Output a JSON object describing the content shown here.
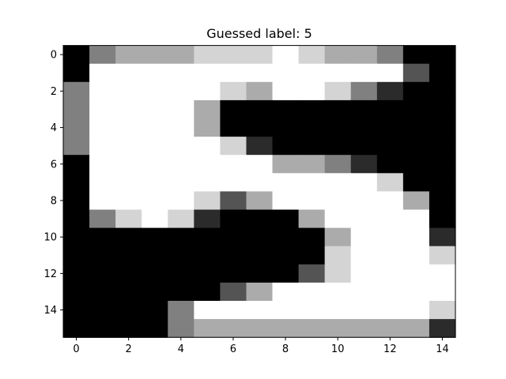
{
  "chart_data": {
    "type": "heatmap",
    "title": "Guessed label: 5",
    "xlabel": "",
    "ylabel": "",
    "colormap": "gray",
    "value_range": [
      0,
      1
    ],
    "n_rows": 16,
    "n_cols": 15,
    "x_ticks": [
      "0",
      "2",
      "4",
      "6",
      "8",
      "10",
      "12",
      "14"
    ],
    "y_ticks": [
      "0",
      "2",
      "4",
      "6",
      "8",
      "10",
      "12",
      "14"
    ],
    "grid": false,
    "values": [
      [
        0.0,
        0.5,
        0.67,
        0.67,
        0.67,
        0.83,
        0.83,
        0.83,
        1.0,
        0.83,
        0.67,
        0.67,
        0.5,
        0.0,
        0.0
      ],
      [
        0.0,
        1.0,
        1.0,
        1.0,
        1.0,
        1.0,
        1.0,
        1.0,
        1.0,
        1.0,
        1.0,
        1.0,
        1.0,
        0.33,
        0.0
      ],
      [
        0.5,
        1.0,
        1.0,
        1.0,
        1.0,
        1.0,
        0.83,
        0.67,
        1.0,
        1.0,
        0.83,
        0.5,
        0.17,
        0.0,
        0.0
      ],
      [
        0.5,
        1.0,
        1.0,
        1.0,
        1.0,
        0.67,
        0.0,
        0.0,
        0.0,
        0.0,
        0.0,
        0.0,
        0.0,
        0.0,
        0.0
      ],
      [
        0.5,
        1.0,
        1.0,
        1.0,
        1.0,
        0.67,
        0.0,
        0.0,
        0.0,
        0.0,
        0.0,
        0.0,
        0.0,
        0.0,
        0.0
      ],
      [
        0.5,
        1.0,
        1.0,
        1.0,
        1.0,
        1.0,
        0.83,
        0.17,
        0.0,
        0.0,
        0.0,
        0.0,
        0.0,
        0.0,
        0.0
      ],
      [
        0.0,
        1.0,
        1.0,
        1.0,
        1.0,
        1.0,
        1.0,
        1.0,
        0.67,
        0.67,
        0.5,
        0.17,
        0.0,
        0.0,
        0.0
      ],
      [
        0.0,
        1.0,
        1.0,
        1.0,
        1.0,
        1.0,
        1.0,
        1.0,
        1.0,
        1.0,
        1.0,
        1.0,
        0.83,
        0.0,
        0.0
      ],
      [
        0.0,
        1.0,
        1.0,
        1.0,
        1.0,
        0.83,
        0.33,
        0.67,
        1.0,
        1.0,
        1.0,
        1.0,
        1.0,
        0.67,
        0.0
      ],
      [
        0.0,
        0.5,
        0.83,
        1.0,
        0.83,
        0.17,
        0.0,
        0.0,
        0.0,
        0.67,
        1.0,
        1.0,
        1.0,
        1.0,
        0.0
      ],
      [
        0.0,
        0.0,
        0.0,
        0.0,
        0.0,
        0.0,
        0.0,
        0.0,
        0.0,
        0.0,
        0.67,
        1.0,
        1.0,
        1.0,
        0.17
      ],
      [
        0.0,
        0.0,
        0.0,
        0.0,
        0.0,
        0.0,
        0.0,
        0.0,
        0.0,
        0.0,
        0.83,
        1.0,
        1.0,
        1.0,
        0.83
      ],
      [
        0.0,
        0.0,
        0.0,
        0.0,
        0.0,
        0.0,
        0.0,
        0.0,
        0.0,
        0.33,
        0.83,
        1.0,
        1.0,
        1.0,
        1.0
      ],
      [
        0.0,
        0.0,
        0.0,
        0.0,
        0.0,
        0.0,
        0.33,
        0.67,
        1.0,
        1.0,
        1.0,
        1.0,
        1.0,
        1.0,
        1.0
      ],
      [
        0.0,
        0.0,
        0.0,
        0.0,
        0.5,
        1.0,
        1.0,
        1.0,
        1.0,
        1.0,
        1.0,
        1.0,
        1.0,
        1.0,
        0.83
      ],
      [
        0.0,
        0.0,
        0.0,
        0.0,
        0.5,
        0.67,
        0.67,
        0.67,
        0.67,
        0.67,
        0.67,
        0.67,
        0.67,
        0.67,
        0.17
      ]
    ]
  }
}
